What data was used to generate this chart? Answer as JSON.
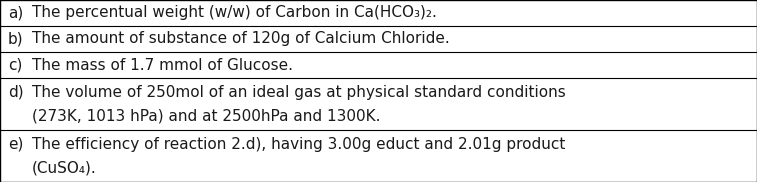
{
  "rows": [
    {
      "label": "a)",
      "line1": "The percentual weight (w/w) of Carbon in Ca(HCO₃)₂.",
      "line2": null
    },
    {
      "label": "b)",
      "line1": "The amount of substance of 120g of Calcium Chloride.",
      "line2": null
    },
    {
      "label": "c)",
      "line1": "The mass of 1.7 mmol of Glucose.",
      "line2": null
    },
    {
      "label": "d)",
      "line1": "The volume of 250mol of an ideal gas at physical standard conditions",
      "line2": "(273K, 1013 hPa) and at 2500hPa and 1300K."
    },
    {
      "label": "e)",
      "line1": "The efficiency of reaction 2.d), having 3.00g educt and 2.01g product",
      "line2": "(CuSO₄)."
    }
  ],
  "background_color": "#ffffff",
  "border_color": "#000000",
  "text_color": "#1a1a1a",
  "font_size": 11.0,
  "font_family": "DejaVu Sans"
}
